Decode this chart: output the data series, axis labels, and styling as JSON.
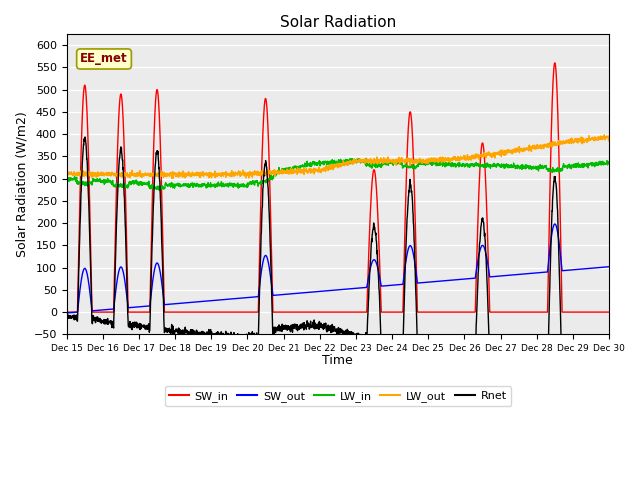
{
  "title": "Solar Radiation",
  "xlabel": "Time",
  "ylabel": "Solar Radiation (W/m2)",
  "ylim": [
    -50,
    625
  ],
  "yticks": [
    -50,
    0,
    50,
    100,
    150,
    200,
    250,
    300,
    350,
    400,
    450,
    500,
    550,
    600
  ],
  "annotation_text": "EE_met",
  "plot_bg_color": "#ebebeb",
  "colors": {
    "SW_in": "#ff0000",
    "SW_out": "#0000ff",
    "LW_in": "#00bb00",
    "LW_out": "#ffa500",
    "Rnet": "#000000"
  },
  "sw_in_peaks": [
    510,
    490,
    500,
    0,
    0,
    480,
    0,
    0,
    320,
    450,
    0,
    380,
    0,
    560,
    0
  ],
  "day_start": 15,
  "n_days": 15,
  "pts_per_day": 144
}
